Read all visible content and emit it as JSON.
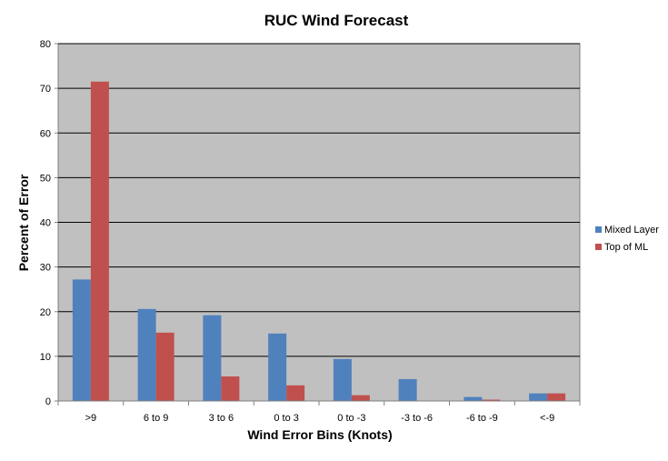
{
  "chart_data": {
    "type": "bar",
    "title": "RUC Wind Forecast",
    "xlabel": "Wind Error Bins (Knots)",
    "ylabel": "Percent of Error",
    "categories": [
      ">9",
      "6 to 9",
      "3 to 6",
      "0 to 3",
      "0 to -3",
      "-3 to -6",
      "-6 to -9",
      "<-9"
    ],
    "series": [
      {
        "name": "Mixed Layer",
        "color": "#4F81BD",
        "values": [
          27.2,
          20.6,
          19.2,
          15.1,
          9.4,
          4.9,
          0.9,
          1.7
        ]
      },
      {
        "name": "Top of ML",
        "color": "#C0504D",
        "values": [
          71.5,
          15.3,
          5.5,
          3.5,
          1.3,
          0.0,
          0.3,
          1.7
        ]
      }
    ],
    "ylim": [
      0,
      80
    ],
    "yticks": [
      0,
      10,
      20,
      30,
      40,
      50,
      60,
      70,
      80
    ],
    "grid": true,
    "plot_background": "#C0C0C0",
    "legend_position": "right"
  }
}
